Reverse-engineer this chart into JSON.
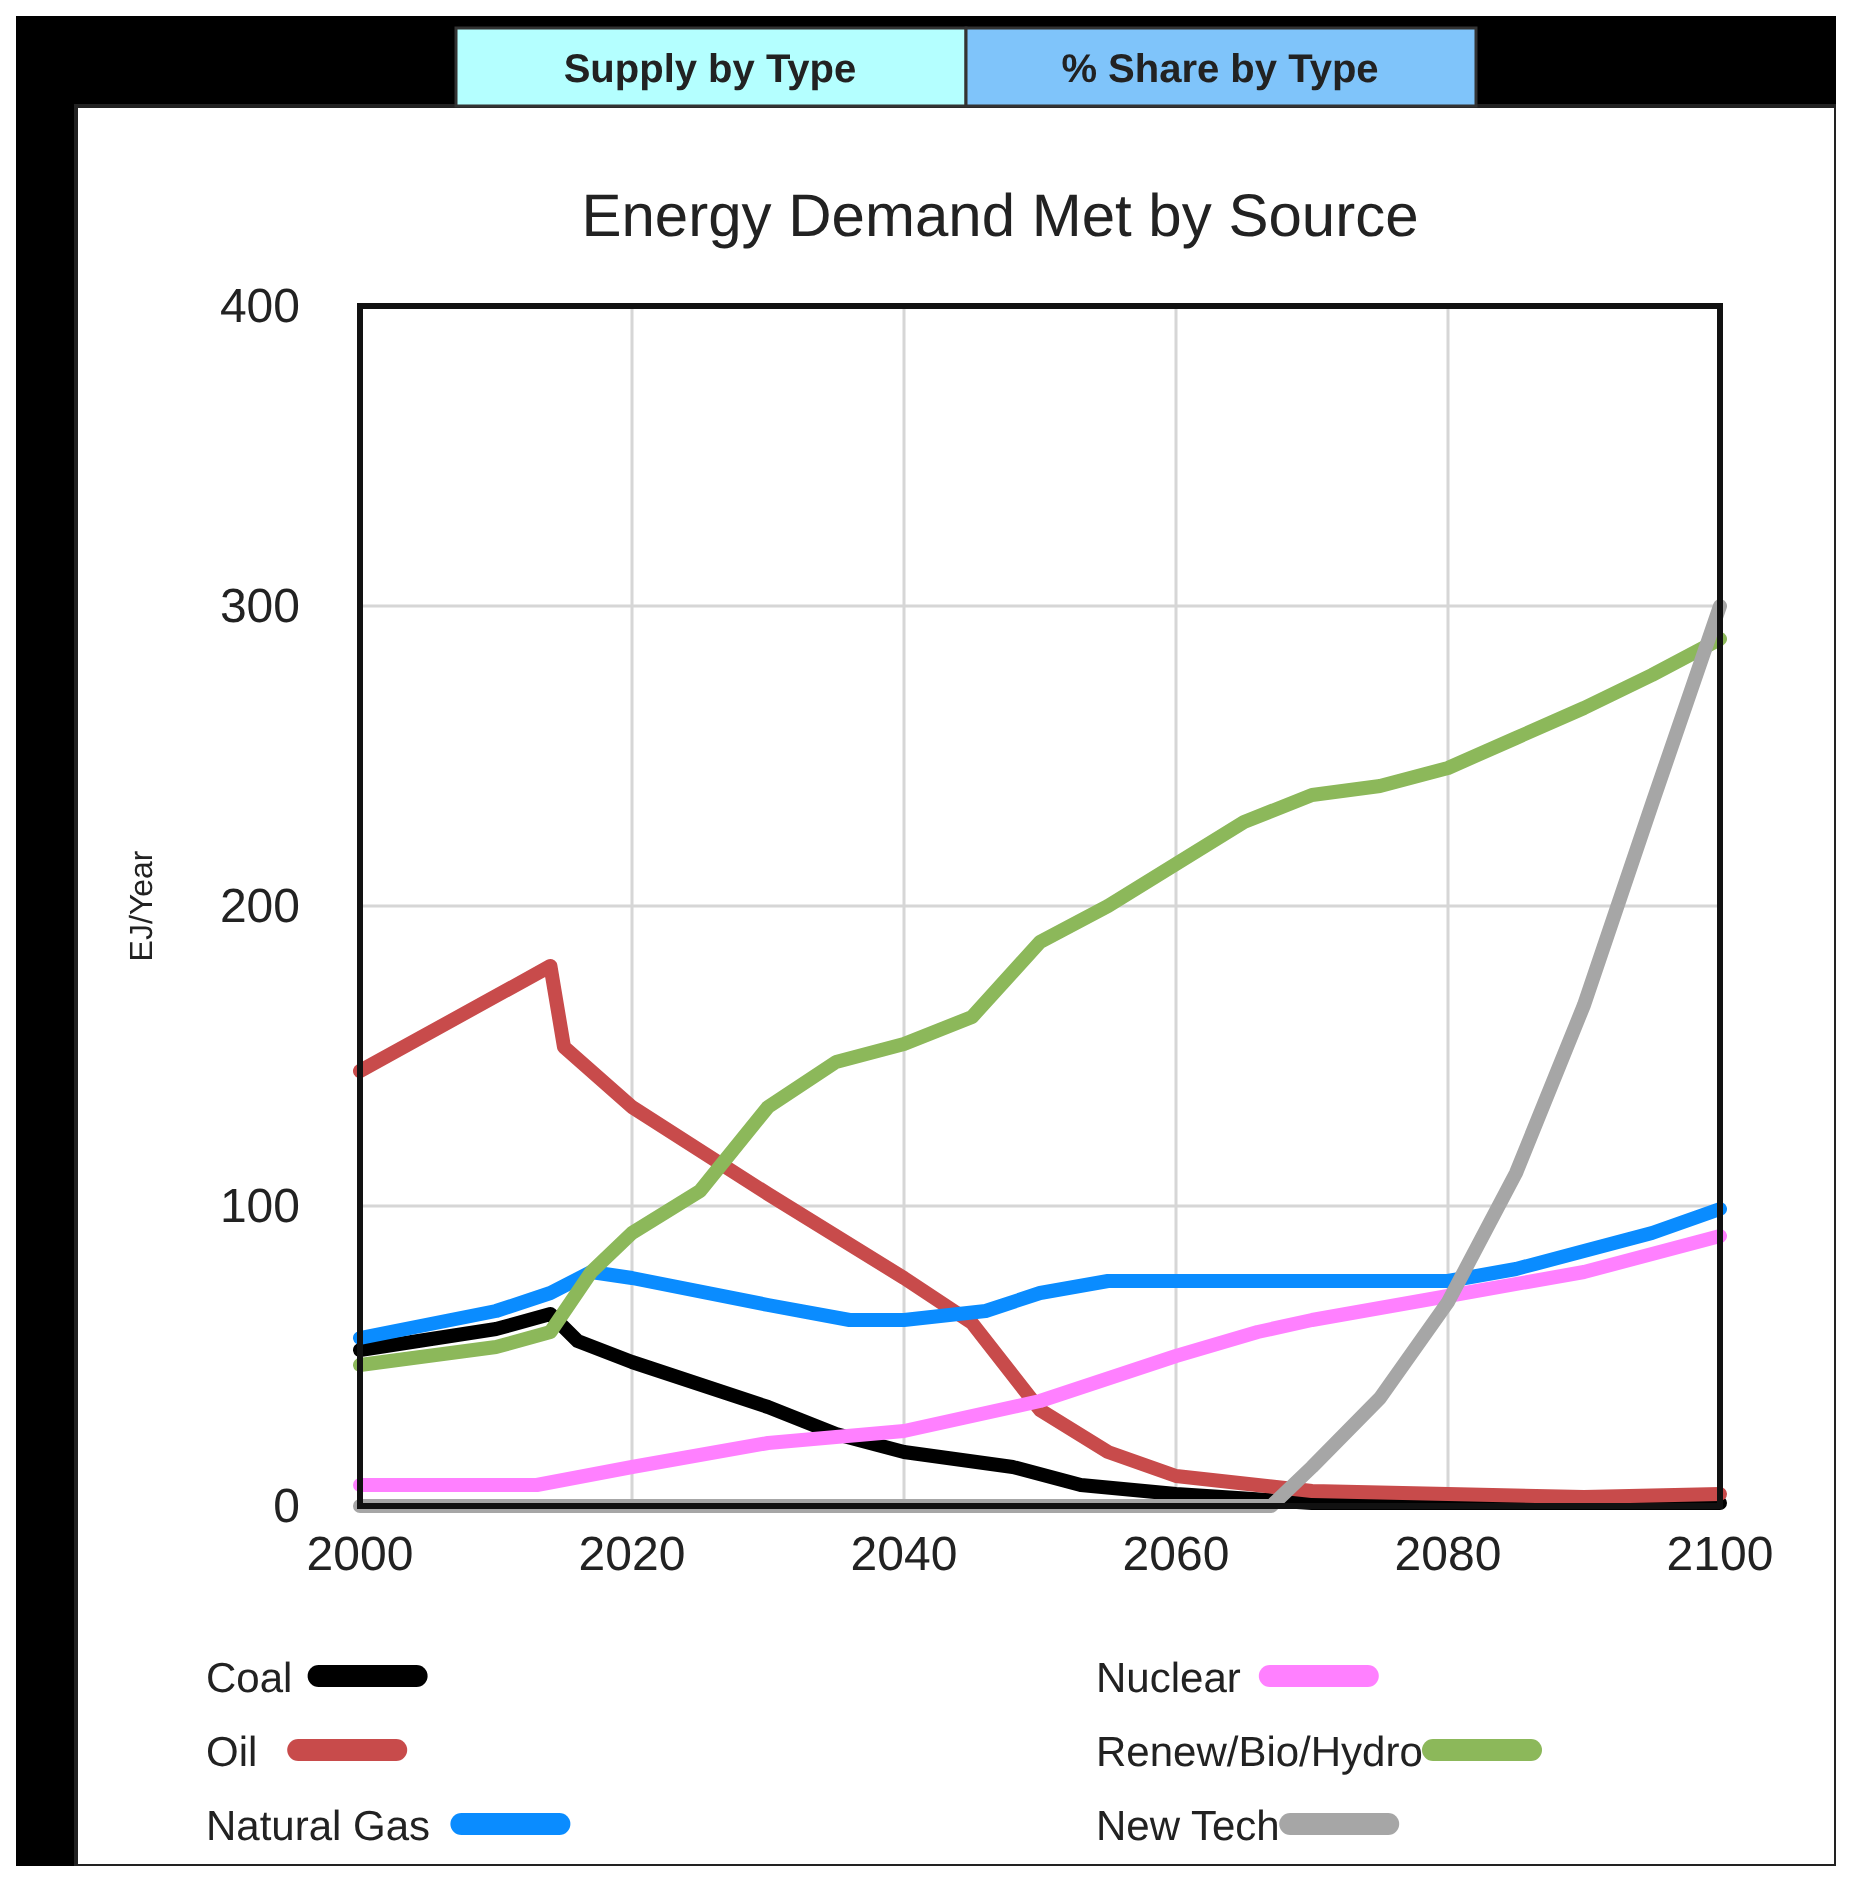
{
  "chart_data": {
    "type": "line",
    "title": "Energy Demand Met by Source",
    "ylabel": "EJ/Year",
    "annotations": [
      "Supply by Type",
      "% Share by Type"
    ],
    "xlim": [
      2000,
      2100
    ],
    "xticks": [
      2000,
      2020,
      2040,
      2060,
      2080,
      2100
    ],
    "ylim": [
      0,
      400
    ],
    "yticks": [
      0,
      100,
      200,
      300,
      400
    ],
    "grid": true,
    "legend": "bottom",
    "line_style": "solid",
    "marker": "none",
    "series": [
      {
        "name": "Coal",
        "color": "#000000",
        "x": [
          2000,
          2010,
          2014,
          2016,
          2020,
          2030,
          2035,
          2040,
          2048,
          2053,
          2060,
          2070,
          2100
        ],
        "values": [
          52,
          59,
          64,
          55,
          48,
          33,
          24,
          18,
          13,
          7,
          4,
          1,
          1
        ]
      },
      {
        "name": "Oil",
        "color": "#c84b4b",
        "x": [
          2000,
          2014,
          2015,
          2020,
          2030,
          2040,
          2045,
          2050,
          2055,
          2060,
          2070,
          2080,
          2090,
          2100
        ],
        "values": [
          145,
          180,
          153,
          133,
          104,
          76,
          61,
          32,
          18,
          10,
          5,
          4,
          3,
          4
        ]
      },
      {
        "name": "Natural Gas",
        "color": "#0a8cff",
        "x": [
          2000,
          2010,
          2014,
          2017,
          2020,
          2030,
          2036,
          2040,
          2046,
          2050,
          2055,
          2060,
          2080,
          2085,
          2090,
          2095,
          2100
        ],
        "values": [
          56,
          65,
          71,
          78,
          76,
          67,
          62,
          62,
          65,
          71,
          75,
          75,
          75,
          79,
          85,
          91,
          99
        ]
      },
      {
        "name": "Nuclear",
        "color": "#ff80ff",
        "x": [
          2000,
          2013,
          2020,
          2030,
          2040,
          2050,
          2060,
          2066,
          2070,
          2080,
          2090,
          2100
        ],
        "values": [
          7,
          7,
          13,
          21,
          25,
          35,
          50,
          58,
          62,
          70,
          78,
          90
        ]
      },
      {
        "name": "Renew/Bio/Hydro",
        "color": "#8cb85a",
        "x": [
          2000,
          2010,
          2014,
          2017,
          2020,
          2025,
          2030,
          2035,
          2040,
          2045,
          2050,
          2055,
          2060,
          2065,
          2070,
          2075,
          2080,
          2085,
          2090,
          2095,
          2100
        ],
        "values": [
          47,
          53,
          58,
          78,
          91,
          105,
          133,
          148,
          154,
          163,
          188,
          200,
          214,
          228,
          237,
          240,
          246,
          256,
          266,
          277,
          289
        ]
      },
      {
        "name": "New Tech",
        "color": "#a6a6a6",
        "x": [
          2000,
          2067,
          2070,
          2075,
          2080,
          2085,
          2090,
          2095,
          2100
        ],
        "values": [
          0,
          0,
          13,
          36,
          68,
          111,
          167,
          234,
          300
        ]
      }
    ]
  }
}
